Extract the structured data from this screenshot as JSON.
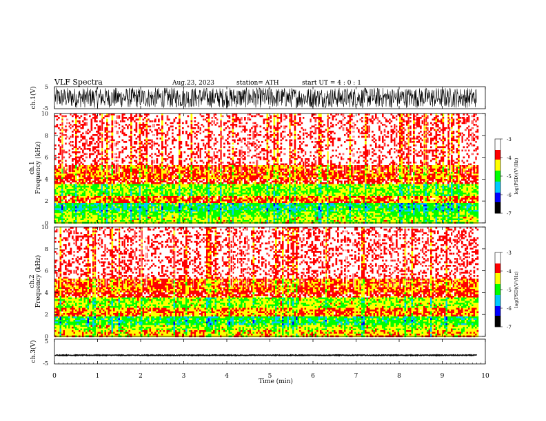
{
  "header": {
    "title": "VLF  Spectra",
    "date": "Aug.23, 2023",
    "station": "station= ATH",
    "start": "start  UT  =   4  : 0  : 1"
  },
  "chart_data": [
    {
      "type": "line",
      "name": "ch1-waveform",
      "ylabel": "ch.1(V)",
      "ylim": [
        -5,
        5
      ],
      "yticks": [
        5,
        -5
      ],
      "xlim": [
        0,
        10
      ],
      "data_extent_min": 9.8,
      "description_values": {
        "amplitude_range": [
          -5,
          5
        ]
      }
    },
    {
      "type": "heatmap",
      "name": "ch1-spectrogram",
      "ylabel": "ch.1\nFrequency (kHz)",
      "ylabel_top": "ch.1",
      "ylabel_bottom": "Frequency  (kHz)",
      "ylim": [
        0,
        10
      ],
      "yticks": [
        0,
        2,
        4,
        6,
        8,
        10
      ],
      "xlim": [
        0,
        10
      ],
      "data_extent_min": 9.8,
      "bands_khz": [
        {
          "from": 0.0,
          "to": 0.5,
          "level": -4.6
        },
        {
          "from": 0.5,
          "to": 1.0,
          "level": -4.8
        },
        {
          "from": 1.0,
          "to": 1.8,
          "level": -5.1
        },
        {
          "from": 1.8,
          "to": 2.5,
          "level": -4.0
        },
        {
          "from": 2.5,
          "to": 3.5,
          "level": -4.7
        },
        {
          "from": 3.5,
          "to": 4.0,
          "level": -3.8
        },
        {
          "from": 4.0,
          "to": 5.3,
          "level": -4.0
        },
        {
          "from": 5.3,
          "to": 10.0,
          "level": -3.4
        }
      ]
    },
    {
      "type": "heatmap",
      "name": "ch2-spectrogram",
      "ylabel_top": "ch.2",
      "ylabel_bottom": "Frequency  (kHz)",
      "ylim": [
        0,
        10
      ],
      "yticks": [
        0,
        2,
        4,
        6,
        8,
        10
      ],
      "xlim": [
        0,
        10
      ],
      "data_extent_min": 9.8,
      "bands_khz": [
        {
          "from": 0.0,
          "to": 0.5,
          "level": -4.3
        },
        {
          "from": 0.5,
          "to": 1.0,
          "level": -4.6
        },
        {
          "from": 1.0,
          "to": 1.8,
          "level": -5.0
        },
        {
          "from": 1.8,
          "to": 2.6,
          "level": -4.1
        },
        {
          "from": 2.6,
          "to": 3.5,
          "level": -4.6
        },
        {
          "from": 3.5,
          "to": 4.0,
          "level": -3.8
        },
        {
          "from": 4.0,
          "to": 5.3,
          "level": -4.0
        },
        {
          "from": 5.3,
          "to": 10.0,
          "level": -3.4
        }
      ]
    },
    {
      "type": "line",
      "name": "ch3-waveform",
      "ylabel": "ch.3(V)",
      "ylim": [
        -5,
        5
      ],
      "yticks": [
        5,
        -5
      ],
      "xlim": [
        0,
        10
      ],
      "data_extent_min": 9.8,
      "description_values": {
        "constant_level": -1.5
      }
    }
  ],
  "x_axis": {
    "label": "Time  (min)",
    "ticks": [
      "0",
      "1",
      "2",
      "3",
      "4",
      "5",
      "6",
      "7",
      "8",
      "9",
      "10"
    ]
  },
  "colorbar": {
    "label": "log(PSD)(V²/Hz)",
    "ticks": [
      "-3",
      "-4",
      "-5",
      "-6",
      "-7"
    ],
    "range": [
      -7,
      -3
    ],
    "colors": [
      "#000000",
      "#0000ff",
      "#00c8ff",
      "#00ff00",
      "#ffff00",
      "#ff0000",
      "#ffffff"
    ]
  }
}
